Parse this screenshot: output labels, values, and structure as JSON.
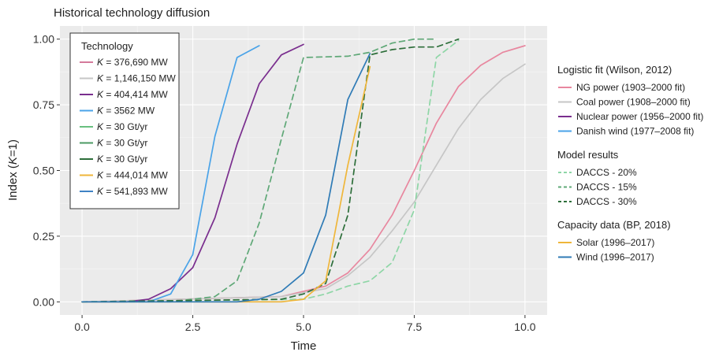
{
  "chart_data": {
    "type": "line",
    "title": "Historical technology diffusion",
    "xlabel": "Time",
    "ylabel_prefix": "Index (",
    "ylabel_var": "K",
    "ylabel_suffix": "=1)",
    "xlim": [
      -0.5,
      10.5
    ],
    "ylim": [
      -0.05,
      1.05
    ],
    "x_ticks": [
      0.0,
      2.5,
      5.0,
      7.5,
      10.0
    ],
    "x_tick_labels": [
      "0.0",
      "2.5",
      "5.0",
      "7.5",
      "10.0"
    ],
    "y_ticks": [
      0.0,
      0.25,
      0.5,
      0.75,
      1.0
    ],
    "y_tick_labels": [
      "0.00",
      "0.25",
      "0.50",
      "0.75",
      "1.00"
    ],
    "grid": true,
    "inner_legend": {
      "title": "Technology",
      "placement": "top-left",
      "entries": [
        {
          "var": "K",
          "eq": " = ",
          "value": "376,690 MW",
          "color": "#d47a9b",
          "dash": "solid"
        },
        {
          "var": "K",
          "eq": " = ",
          "value": "1,146,150 MW",
          "color": "#c6c6c6",
          "dash": "solid"
        },
        {
          "var": "K",
          "eq": " = ",
          "value": "404,414 MW",
          "color": "#7a2e8e",
          "dash": "solid"
        },
        {
          "var": "K",
          "eq": " = ",
          "value": "3562 MW",
          "color": "#4aa3e8",
          "dash": "solid"
        },
        {
          "var": "K",
          "eq": " = ",
          "value": "30 Gt/yr",
          "color": "#69c07f",
          "dash": "solid"
        },
        {
          "var": "K",
          "eq": " = ",
          "value": "30 Gt/yr",
          "color": "#4b9a63",
          "dash": "solid"
        },
        {
          "var": "K",
          "eq": " = ",
          "value": "30 Gt/yr",
          "color": "#2d6e3a",
          "dash": "solid"
        },
        {
          "var": "K",
          "eq": " = ",
          "value": "444,014 MW",
          "color": "#efb63a",
          "dash": "solid"
        },
        {
          "var": "K",
          "eq": " = ",
          "value": "541,893 MW",
          "color": "#3f82c4",
          "dash": "solid"
        }
      ]
    },
    "outer_legend": {
      "placement": "right",
      "groups": [
        {
          "title": "Logistic fit (Wilson, 2012)",
          "items": [
            {
              "label": "NG power (1903–2000 fit)",
              "color": "#e8879f",
              "dash": "solid"
            },
            {
              "label": "Coal power (1908–2000 fit)",
              "color": "#c6c6c6",
              "dash": "solid"
            },
            {
              "label": "Nuclear power (1956–2000 fit)",
              "color": "#7a2e8e",
              "dash": "solid"
            },
            {
              "label": "Danish wind (1977–2008 fit)",
              "color": "#4aa3e8",
              "dash": "solid"
            }
          ]
        },
        {
          "title": "Model results",
          "items": [
            {
              "label": "DACCS - 20%",
              "color": "#8ed6a6",
              "dash": "dashed"
            },
            {
              "label": "DACCS - 15%",
              "color": "#5fa877",
              "dash": "dashed"
            },
            {
              "label": "DACCS - 30%",
              "color": "#2d6e3a",
              "dash": "dashed"
            }
          ]
        },
        {
          "title": "Capacity data (BP, 2018)",
          "items": [
            {
              "label": "Solar (1996–2017)",
              "color": "#efb63a",
              "dash": "solid"
            },
            {
              "label": "Wind (1996–2017)",
              "color": "#2f7bb6",
              "dash": "solid"
            }
          ]
        }
      ]
    },
    "series": [
      {
        "name": "NG power (1903–2000 fit)",
        "color": "#e8879f",
        "dash": "solid",
        "x": [
          0,
          4.5,
          5.5,
          6.0,
          6.5,
          7.0,
          7.5,
          8.0,
          8.5,
          9.0,
          9.5,
          10.0
        ],
        "y": [
          0.0,
          0.02,
          0.06,
          0.11,
          0.2,
          0.33,
          0.5,
          0.68,
          0.82,
          0.9,
          0.95,
          0.975
        ]
      },
      {
        "name": "Coal power (1908–2000 fit)",
        "color": "#c6c6c6",
        "dash": "solid",
        "x": [
          0,
          4.5,
          5.5,
          6.0,
          6.5,
          7.0,
          7.5,
          8.0,
          8.5,
          9.0,
          9.5,
          10.0
        ],
        "y": [
          0.0,
          0.02,
          0.05,
          0.1,
          0.17,
          0.27,
          0.38,
          0.52,
          0.66,
          0.77,
          0.85,
          0.905
        ]
      },
      {
        "name": "Nuclear power (1956–2000 fit)",
        "color": "#7a2e8e",
        "dash": "solid",
        "x": [
          0,
          1.0,
          1.5,
          2.0,
          2.5,
          3.0,
          3.5,
          4.0,
          4.5,
          5.0
        ],
        "y": [
          0.0,
          0.0,
          0.01,
          0.05,
          0.13,
          0.32,
          0.6,
          0.83,
          0.94,
          0.98
        ]
      },
      {
        "name": "Danish wind (1977–2008 fit)",
        "color": "#4aa3e8",
        "dash": "solid",
        "x": [
          0,
          1.5,
          2.0,
          2.5,
          3.0,
          3.5,
          4.0
        ],
        "y": [
          0.0,
          0.0,
          0.03,
          0.18,
          0.63,
          0.93,
          0.975
        ]
      },
      {
        "name": "DACCS - 20%",
        "color": "#8ed6a6",
        "dash": "dashed",
        "x": [
          0,
          5.0,
          5.5,
          6.0,
          6.5,
          7.0,
          7.5,
          8.0,
          8.5
        ],
        "y": [
          0.0,
          0.01,
          0.03,
          0.06,
          0.08,
          0.15,
          0.35,
          0.93,
          0.995
        ]
      },
      {
        "name": "DACCS - 15%",
        "color": "#5fa877",
        "dash": "dashed",
        "x": [
          0,
          2.0,
          3.0,
          3.5,
          4.0,
          4.5,
          5.0,
          6.0,
          6.5,
          7.0,
          7.5,
          8.0
        ],
        "y": [
          0.0,
          0.0,
          0.02,
          0.08,
          0.3,
          0.62,
          0.93,
          0.935,
          0.95,
          0.985,
          1.0,
          1.0
        ]
      },
      {
        "name": "DACCS - 30%",
        "color": "#2d6e3a",
        "dash": "dashed",
        "x": [
          0,
          4.5,
          5.0,
          5.5,
          6.0,
          6.5,
          7.0,
          7.5,
          8.0,
          8.5
        ],
        "y": [
          0.0,
          0.01,
          0.03,
          0.07,
          0.33,
          0.94,
          0.96,
          0.97,
          0.97,
          1.0
        ]
      },
      {
        "name": "Solar (1996–2017)",
        "color": "#efb63a",
        "dash": "solid",
        "x": [
          0,
          4.5,
          5.0,
          5.5,
          6.0,
          6.5
        ],
        "y": [
          0.0,
          0.0,
          0.01,
          0.08,
          0.52,
          0.895
        ]
      },
      {
        "name": "Wind (1996–2017)",
        "color": "#2f7bb6",
        "dash": "solid",
        "x": [
          0,
          3.5,
          4.0,
          4.5,
          5.0,
          5.5,
          6.0,
          6.5
        ],
        "y": [
          0.0,
          0.0,
          0.01,
          0.04,
          0.11,
          0.33,
          0.77,
          0.945
        ]
      }
    ]
  }
}
